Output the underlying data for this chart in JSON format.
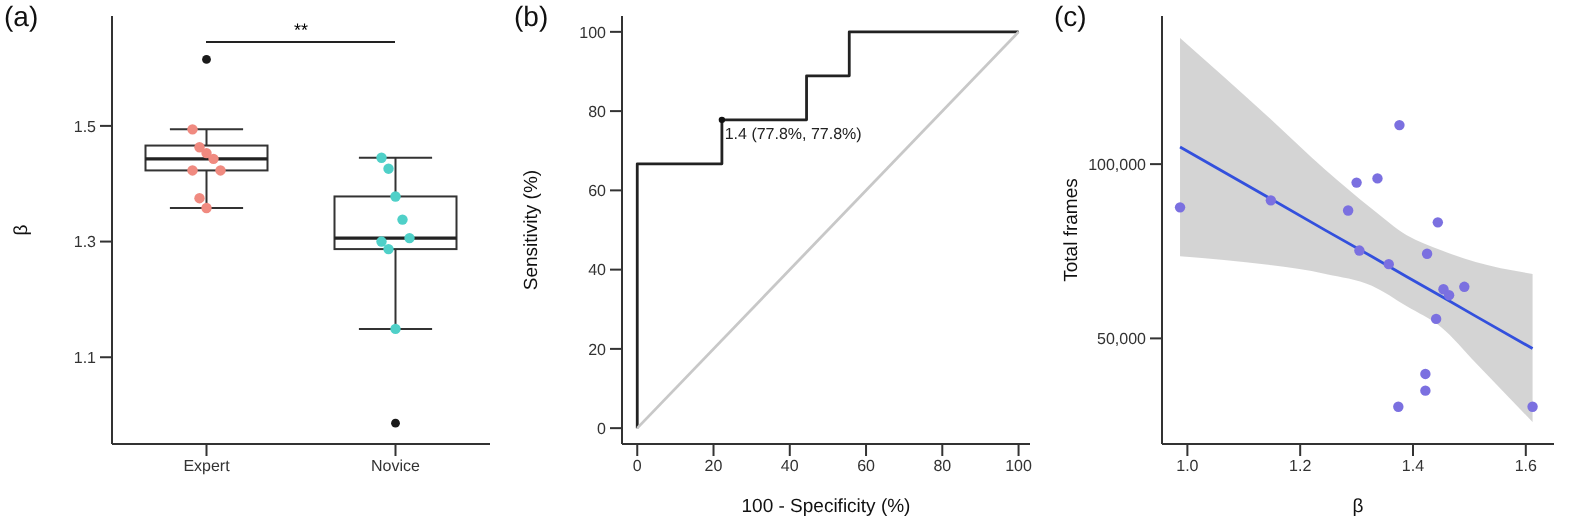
{
  "chart_data": [
    {
      "type": "box",
      "title": "(a)",
      "ylabel": "β",
      "categories": [
        "Expert",
        "Novice"
      ],
      "ylim": [
        0.95,
        1.69
      ],
      "yticks": [
        1.1,
        1.3,
        1.5
      ],
      "boxes": [
        {
          "low": 1.358,
          "q1": 1.423,
          "median": 1.443,
          "q3": 1.466,
          "high": 1.494,
          "outliers": [
            1.615
          ]
        },
        {
          "low": 1.149,
          "q1": 1.287,
          "median": 1.306,
          "q3": 1.378,
          "high": 1.445,
          "outliers": [
            0.986
          ]
        }
      ],
      "series": [
        {
          "type": "scatter",
          "color": "#f08a80",
          "x": [
            "Expert",
            "Expert",
            "Expert",
            "Expert",
            "Expert",
            "Expert",
            "Expert",
            "Expert"
          ],
          "values": [
            1.494,
            1.463,
            1.453,
            1.443,
            1.423,
            1.423,
            1.375,
            1.358
          ]
        },
        {
          "type": "scatter",
          "color": "#4fd0c8",
          "x": [
            "Novice",
            "Novice",
            "Novice",
            "Novice",
            "Novice",
            "Novice",
            "Novice",
            "Novice"
          ],
          "values": [
            1.445,
            1.426,
            1.378,
            1.338,
            1.306,
            1.3,
            1.287,
            1.149
          ]
        }
      ],
      "annotations": [
        "**"
      ]
    },
    {
      "type": "line",
      "title": "(b)",
      "xlabel": "100 - Specificity (%)",
      "ylabel": "Sensitivity (%)",
      "xlim": [
        -4,
        103
      ],
      "ylim": [
        -4,
        104
      ],
      "xticks": [
        0,
        20,
        40,
        60,
        80,
        100
      ],
      "yticks": [
        0,
        20,
        40,
        60,
        80,
        100
      ],
      "series": [
        {
          "color": "#222222",
          "x": [
            0,
            0,
            22.2,
            22.2,
            44.4,
            44.4,
            55.6,
            55.6,
            100
          ],
          "values": [
            0,
            66.7,
            66.7,
            77.8,
            77.8,
            88.9,
            88.9,
            100,
            100
          ]
        },
        {
          "color": "#c8c8c8",
          "x": [
            0,
            100
          ],
          "values": [
            0,
            100
          ]
        }
      ],
      "annotations": [
        {
          "text": "1.4 (77.8%, 77.8%)",
          "x": 22.2,
          "y": 77.8
        }
      ]
    },
    {
      "type": "scatter",
      "title": "(c)",
      "xlabel": "β",
      "ylabel": "Total frames",
      "xlim": [
        0.955,
        1.65
      ],
      "ylim": [
        19700,
        142500
      ],
      "xticks": [
        {
          "value": 1,
          "label": "1.0"
        },
        1.2,
        1.4,
        1.6
      ],
      "yticks": [
        {
          "value": 50000,
          "label": "50,000"
        },
        {
          "value": 100000,
          "label": "100,000"
        }
      ],
      "series": [
        {
          "color": "#7b70e0",
          "x": [
            0.987,
            1.148,
            1.285,
            1.3,
            1.305,
            1.337,
            1.357,
            1.376,
            1.374,
            1.425,
            1.422,
            1.422,
            1.444,
            1.441,
            1.454,
            1.464,
            1.491,
            1.612
          ],
          "values": [
            87600,
            89600,
            86700,
            94700,
            75200,
            95900,
            71300,
            111200,
            30400,
            74300,
            39800,
            35000,
            83300,
            55600,
            64100,
            62400,
            64800,
            30400
          ]
        },
        {
          "type": "line",
          "color": "#3350dd",
          "x": [
            0.987,
            1.143,
            1.245,
            1.327,
            1.389,
            1.45,
            1.511,
            1.612
          ],
          "values": [
            104900,
            90500,
            81000,
            73500,
            67700,
            62100,
            56400,
            47100
          ],
          "lower": [
            73600,
            71100,
            68500,
            65100,
            59200,
            53200,
            43000,
            26000
          ],
          "upper": [
            136200,
            113600,
            98300,
            87200,
            79600,
            75300,
            71900,
            68500
          ]
        }
      ]
    }
  ]
}
